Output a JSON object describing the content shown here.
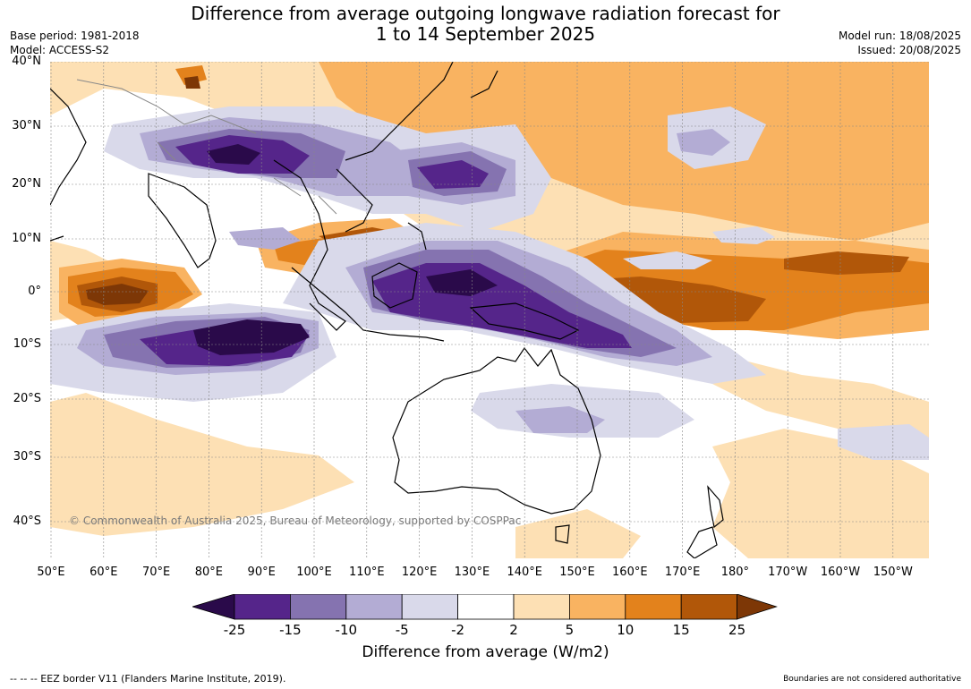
{
  "title": {
    "line1": "Difference from average outgoing longwave radiation forecast for",
    "line2": "1 to 14 September 2025"
  },
  "meta": {
    "base_period": "Base period: 1981-2018",
    "model": "Model: ACCESS-S2",
    "model_run": "Model run: 18/08/2025",
    "issued": "Issued: 20/08/2025"
  },
  "map": {
    "lat_labels": [
      "40°N",
      "30°N",
      "20°N",
      "10°N",
      "0°",
      "10°S",
      "20°S",
      "30°S",
      "40°S"
    ],
    "lon_labels": [
      "50°E",
      "60°E",
      "70°E",
      "80°E",
      "90°E",
      "100°E",
      "110°E",
      "120°E",
      "130°E",
      "140°E",
      "150°E",
      "160°E",
      "170°E",
      "180°",
      "170°W",
      "160°W",
      "150°W"
    ],
    "copyright": "© Commonwealth of Australia 2025, Bureau of Meteorology, supported by COSPPac"
  },
  "colorbar": {
    "title": "Difference from average (W/m2)",
    "ticks": [
      "-25",
      "-15",
      "-10",
      "-5",
      "-2",
      "2",
      "5",
      "10",
      "15",
      "25"
    ],
    "colors": [
      "#2a0a4a",
      "#55258a",
      "#8573b0",
      "#b3acd4",
      "#d9d9ea",
      "#ffffff",
      "#fde0b4",
      "#f9b361",
      "#e3821c",
      "#b15709",
      "#7d3706"
    ]
  },
  "footer": {
    "eez_note": "-- -- -- EEZ border V11 (Flanders Marine Institute, 2019).",
    "boundary_note": "Boundaries are not considered authoritative"
  }
}
